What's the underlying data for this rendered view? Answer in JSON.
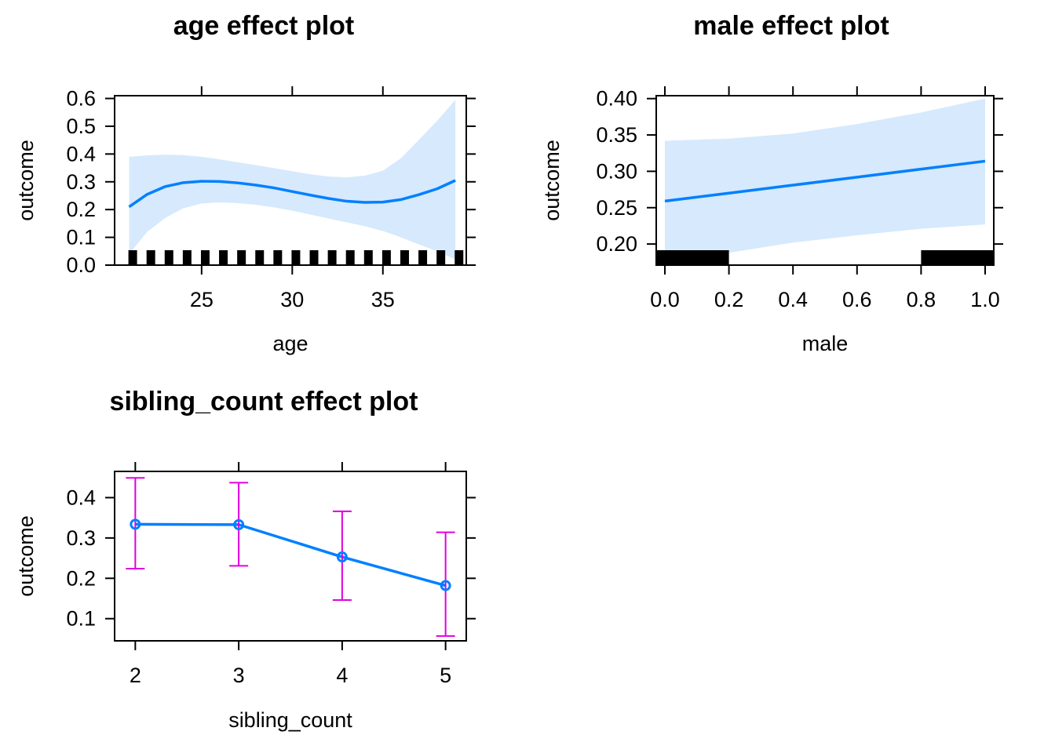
{
  "colors": {
    "line": "#0080ff",
    "band": "#d6e9fd",
    "errorbar": "#e000e0",
    "rug": "#000000",
    "frame": "#000000"
  },
  "chart_data": [
    {
      "id": "age",
      "type": "line",
      "title": "age effect plot",
      "xlabel": "age",
      "ylabel": "outcome",
      "xlim": [
        20.2,
        39.6
      ],
      "ylim": [
        0.0,
        0.61
      ],
      "xticks": [
        25,
        30,
        35
      ],
      "yticks": [
        0.0,
        0.1,
        0.2,
        0.3,
        0.4,
        0.5,
        0.6
      ],
      "ytick_labels": [
        "0.0",
        "0.1",
        "0.2",
        "0.3",
        "0.4",
        "0.5",
        "0.6"
      ],
      "x": [
        21,
        22,
        23,
        24,
        25,
        26,
        27,
        28,
        29,
        30,
        31,
        32,
        33,
        34,
        35,
        36,
        37,
        38,
        39
      ],
      "fit": [
        0.21,
        0.255,
        0.283,
        0.297,
        0.302,
        0.301,
        0.296,
        0.288,
        0.278,
        0.265,
        0.252,
        0.24,
        0.23,
        0.226,
        0.227,
        0.236,
        0.254,
        0.275,
        0.305
      ],
      "lower": [
        0.04,
        0.12,
        0.17,
        0.205,
        0.222,
        0.226,
        0.223,
        0.217,
        0.208,
        0.196,
        0.182,
        0.168,
        0.154,
        0.14,
        0.123,
        0.1,
        0.074,
        0.05,
        0.02
      ],
      "upper": [
        0.39,
        0.395,
        0.398,
        0.396,
        0.39,
        0.381,
        0.37,
        0.36,
        0.349,
        0.338,
        0.327,
        0.319,
        0.316,
        0.322,
        0.34,
        0.385,
        0.452,
        0.52,
        0.595
      ],
      "rug": [
        21.2,
        22.2,
        23.2,
        24.2,
        25.2,
        26.2,
        27.2,
        28.2,
        29.2,
        30.2,
        31.2,
        32.2,
        33.2,
        34.2,
        35.2,
        36.2,
        37.2,
        38.2,
        39.2
      ],
      "band": true
    },
    {
      "id": "male",
      "type": "line",
      "title": "male effect plot",
      "xlabel": "male",
      "ylabel": "outcome",
      "xlim": [
        -0.027,
        1.027
      ],
      "ylim": [
        0.171,
        0.404
      ],
      "xticks": [
        0.0,
        0.2,
        0.4,
        0.6,
        0.8,
        1.0
      ],
      "xtick_labels": [
        "0.0",
        "0.2",
        "0.4",
        "0.6",
        "0.8",
        "1.0"
      ],
      "yticks": [
        0.2,
        0.25,
        0.3,
        0.35,
        0.4
      ],
      "ytick_labels": [
        "0.20",
        "0.25",
        "0.30",
        "0.35",
        "0.40"
      ],
      "x": [
        0.0,
        0.2,
        0.4,
        0.6,
        0.8,
        1.0
      ],
      "fit": [
        0.259,
        0.27,
        0.281,
        0.292,
        0.303,
        0.314
      ],
      "lower": [
        0.174,
        0.188,
        0.202,
        0.212,
        0.221,
        0.227
      ],
      "upper": [
        0.342,
        0.345,
        0.352,
        0.365,
        0.381,
        0.4
      ],
      "rug_ranges": [
        [
          -0.027,
          0.2
        ],
        [
          0.8,
          1.027
        ]
      ],
      "band": true
    },
    {
      "id": "sibling",
      "type": "line",
      "title": "sibling_count effect plot",
      "xlabel": "sibling_count",
      "ylabel": "outcome",
      "xlim": [
        1.8,
        5.2
      ],
      "ylim": [
        0.045,
        0.465
      ],
      "xticks": [
        2,
        3,
        4,
        5
      ],
      "yticks": [
        0.1,
        0.2,
        0.3,
        0.4
      ],
      "ytick_labels": [
        "0.1",
        "0.2",
        "0.3",
        "0.4"
      ],
      "x": [
        2,
        3,
        4,
        5
      ],
      "fit": [
        0.334,
        0.333,
        0.253,
        0.182
      ],
      "lower": [
        0.224,
        0.231,
        0.146,
        0.057
      ],
      "upper": [
        0.449,
        0.437,
        0.366,
        0.314
      ],
      "band": false
    }
  ]
}
